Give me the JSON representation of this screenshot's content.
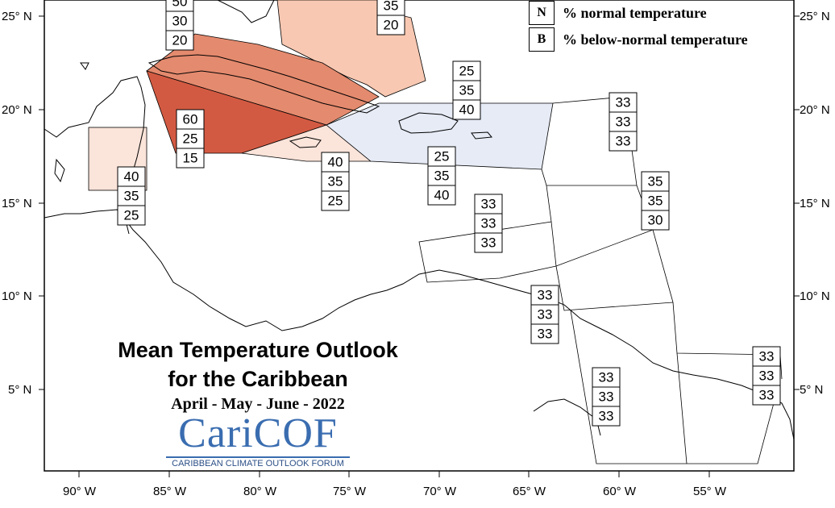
{
  "title_line1": "Mean Temperature Outlook",
  "title_line2": "for the Caribbean",
  "period": "April - May - June - 2022",
  "logo_text": "CariCOF",
  "logo_subtitle": "CARIBBEAN CLIMATE OUTLOOK FORUM",
  "legend": [
    {
      "code": "N",
      "text": "% normal temperature"
    },
    {
      "code": "B",
      "text": "% below-normal temperature"
    }
  ],
  "y_axis_labels": [
    "25° N",
    "20° N",
    "15° N",
    "10° N",
    "5° N"
  ],
  "x_axis_labels": [
    "90° W",
    "85° W",
    "80° W",
    "75° W",
    "70° W",
    "65° W",
    "60° W",
    "55° W"
  ],
  "probability_boxes": [
    {
      "region": "bahamas-northwest",
      "values": [
        "50",
        "30",
        "20"
      ]
    },
    {
      "region": "bahamas-southeast",
      "values": [
        "35",
        "20"
      ]
    },
    {
      "region": "cuba-east",
      "values": [
        "60",
        "25",
        "15"
      ]
    },
    {
      "region": "belize",
      "values": [
        "40",
        "35",
        "25"
      ]
    },
    {
      "region": "jamaica",
      "values": [
        "40",
        "35",
        "25"
      ]
    },
    {
      "region": "hispaniola",
      "values": [
        "25",
        "35",
        "40"
      ]
    },
    {
      "region": "turks-caicos",
      "values": [
        "25",
        "35",
        "40"
      ]
    },
    {
      "region": "leeward-islands",
      "values": [
        "33",
        "33",
        "33"
      ]
    },
    {
      "region": "barbados-east",
      "values": [
        "35",
        "35",
        "30"
      ]
    },
    {
      "region": "abc-islands",
      "values": [
        "33",
        "33",
        "33"
      ]
    },
    {
      "region": "trinidad",
      "values": [
        "33",
        "33",
        "33"
      ]
    },
    {
      "region": "guyana",
      "values": [
        "33",
        "33",
        "33"
      ]
    },
    {
      "region": "french-guiana",
      "values": [
        "33",
        "33",
        "33"
      ]
    }
  ],
  "colors": {
    "above_strong": "#d35a42",
    "above_medium": "#e48a6e",
    "above_light": "#f8c8b2",
    "above_faint": "#fbe4da",
    "below_faint": "#e6ebf6"
  }
}
